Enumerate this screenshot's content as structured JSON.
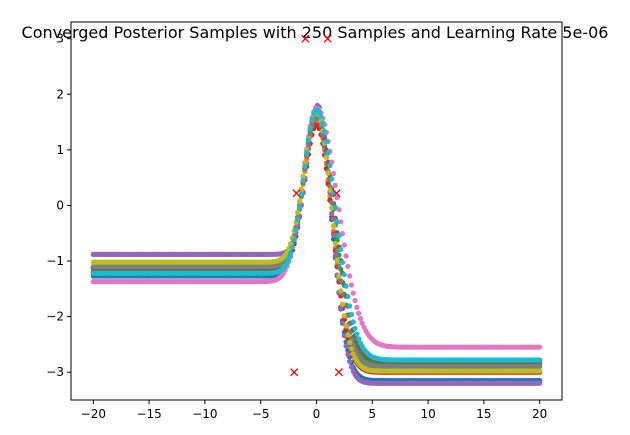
{
  "chart_data": {
    "type": "scatter",
    "title": "Converged Posterior Samples with 250 Samples and Learning Rate 5e-06",
    "xlabel": "",
    "ylabel": "",
    "xlim": [
      -22,
      22
    ],
    "ylim": [
      -3.5,
      3.3
    ],
    "x_ticks": [
      -20,
      -15,
      -10,
      -5,
      0,
      5,
      10,
      15,
      20
    ],
    "y_ticks": [
      -3,
      -2,
      -1,
      0,
      1,
      2,
      3
    ],
    "x_tick_labels": [
      "−20",
      "−15",
      "−10",
      "−5",
      "0",
      "5",
      "10",
      "15",
      "20"
    ],
    "y_tick_labels": [
      "−3",
      "−2",
      "−1",
      "0",
      "1",
      "2",
      "3"
    ],
    "grid": false,
    "legend": "none",
    "sample_x_range": [
      -20,
      20
    ],
    "series": [
      {
        "color": "#1f77b4",
        "left": -1.27,
        "peak": 1.7,
        "right": -3.15,
        "wl": 1.6,
        "wr": 1.9,
        "shift": 0.0
      },
      {
        "color": "#ff7f0e",
        "left": -1.15,
        "peak": 1.55,
        "right": -3.0,
        "wl": 1.6,
        "wr": 2.0,
        "shift": 0.0
      },
      {
        "color": "#2ca02c",
        "left": -1.2,
        "peak": 1.65,
        "right": -2.85,
        "wl": 1.6,
        "wr": 2.2,
        "shift": 0.0
      },
      {
        "color": "#d62728",
        "left": -1.12,
        "peak": 1.45,
        "right": -3.0,
        "wl": 1.5,
        "wr": 2.0,
        "shift": 0.0
      },
      {
        "color": "#9467bd",
        "left": -0.88,
        "peak": 1.8,
        "right": -3.2,
        "wl": 1.4,
        "wr": 1.8,
        "shift": 0.1
      },
      {
        "color": "#8c564b",
        "left": -1.12,
        "peak": 1.6,
        "right": -2.8,
        "wl": 1.6,
        "wr": 2.3,
        "shift": 0.0
      },
      {
        "color": "#e377c2",
        "left": -1.37,
        "peak": 1.75,
        "right": -2.55,
        "wl": 1.7,
        "wr": 2.7,
        "shift": 0.0
      },
      {
        "color": "#7f7f7f",
        "left": -1.1,
        "peak": 1.6,
        "right": -2.9,
        "wl": 1.6,
        "wr": 2.1,
        "shift": 0.0
      },
      {
        "color": "#bcbd22",
        "left": -1.02,
        "peak": 1.7,
        "right": -2.98,
        "wl": 1.6,
        "wr": 2.0,
        "shift": 0.0
      },
      {
        "color": "#17becf",
        "left": -1.22,
        "peak": 1.72,
        "right": -2.78,
        "wl": 1.6,
        "wr": 2.4,
        "shift": 0.0
      }
    ],
    "markers": {
      "symbol": "x",
      "color": "#ff0000",
      "points": [
        {
          "x": -1,
          "y": 3
        },
        {
          "x": 1,
          "y": 3
        },
        {
          "x": -1.8,
          "y": 0.22
        },
        {
          "x": 1.8,
          "y": 0.22
        },
        {
          "x": -2,
          "y": -3
        },
        {
          "x": 2,
          "y": -3
        }
      ]
    }
  }
}
